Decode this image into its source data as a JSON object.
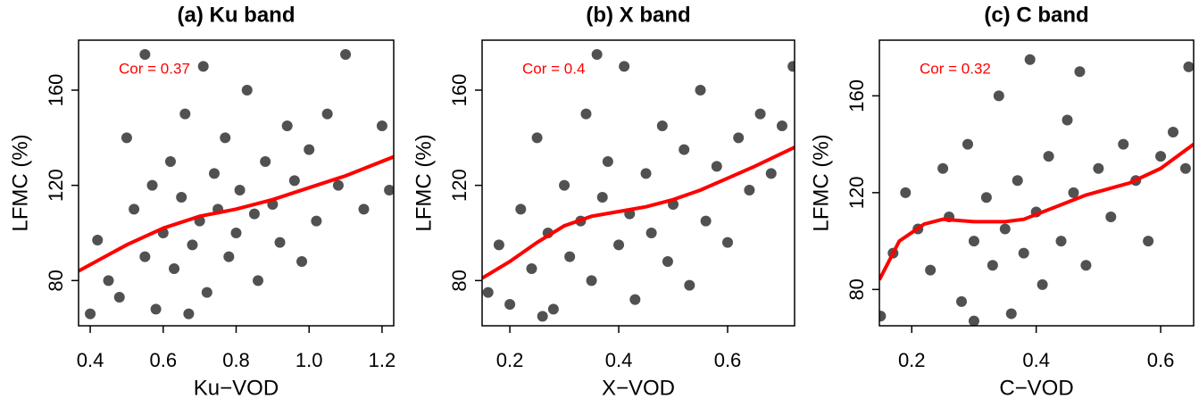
{
  "chart_data": [
    {
      "type": "scatter",
      "title": "(a) Ku band",
      "annotation": "Cor = 0.37",
      "x_label": "Ku−VOD",
      "y_label": "LFMC (%)",
      "xlim": [
        0.368,
        1.232
      ],
      "ylim": [
        61,
        181
      ],
      "xticks": [
        0.4,
        0.6,
        0.8,
        {
          "value": 1.0,
          "label": "1.0"
        },
        1.2
      ],
      "yticks": [
        80,
        120,
        160
      ],
      "color": "#333333",
      "x": [
        0.4,
        0.42,
        0.45,
        0.48,
        0.5,
        0.52,
        0.55,
        0.57,
        0.58,
        0.6,
        0.62,
        0.63,
        0.65,
        0.66,
        0.68,
        0.7,
        0.71,
        0.72,
        0.74,
        0.75,
        0.77,
        0.78,
        0.8,
        0.81,
        0.83,
        0.85,
        0.86,
        0.88,
        0.9,
        0.92,
        0.94,
        0.96,
        0.98,
        1.0,
        1.02,
        1.05,
        1.08,
        1.1,
        1.15,
        1.2,
        1.22,
        0.55,
        0.67
      ],
      "y": [
        66,
        97,
        80,
        73,
        140,
        110,
        90,
        120,
        68,
        100,
        130,
        85,
        115,
        150,
        95,
        105,
        170,
        75,
        125,
        110,
        140,
        90,
        100,
        118,
        160,
        108,
        80,
        130,
        112,
        96,
        145,
        122,
        88,
        135,
        105,
        150,
        120,
        175,
        110,
        145,
        118,
        175,
        66
      ],
      "smooth": {
        "color": "#ff0000",
        "x": [
          0.368,
          0.5,
          0.6,
          0.7,
          0.8,
          0.9,
          1.0,
          1.1,
          1.232
        ],
        "y": [
          84,
          95,
          102,
          107,
          110,
          114,
          119,
          124,
          132
        ]
      }
    },
    {
      "type": "scatter",
      "title": "(b) X band",
      "annotation": "Cor = 0.4",
      "x_label": "X−VOD",
      "y_label": "LFMC (%)",
      "xlim": [
        0.149,
        0.723
      ],
      "ylim": [
        61,
        181
      ],
      "xticks": [
        0.2,
        0.4,
        0.6
      ],
      "yticks": [
        80,
        120,
        160
      ],
      "color": "#333333",
      "x": [
        0.16,
        0.18,
        0.2,
        0.22,
        0.24,
        0.25,
        0.27,
        0.28,
        0.3,
        0.31,
        0.33,
        0.34,
        0.35,
        0.37,
        0.38,
        0.4,
        0.41,
        0.42,
        0.43,
        0.45,
        0.46,
        0.48,
        0.49,
        0.5,
        0.52,
        0.53,
        0.55,
        0.56,
        0.58,
        0.6,
        0.62,
        0.64,
        0.66,
        0.68,
        0.7,
        0.72,
        0.36,
        0.26
      ],
      "y": [
        75,
        95,
        70,
        110,
        85,
        140,
        100,
        68,
        120,
        90,
        105,
        150,
        80,
        115,
        130,
        95,
        170,
        108,
        72,
        125,
        100,
        145,
        88,
        112,
        135,
        78,
        160,
        105,
        128,
        96,
        140,
        118,
        150,
        125,
        145,
        170,
        175,
        65
      ],
      "smooth": {
        "color": "#ff0000",
        "x": [
          0.149,
          0.2,
          0.25,
          0.3,
          0.35,
          0.4,
          0.45,
          0.5,
          0.55,
          0.6,
          0.65,
          0.723
        ],
        "y": [
          81,
          88,
          96,
          103,
          107,
          109,
          111,
          114,
          118,
          123,
          128,
          136
        ]
      }
    },
    {
      "type": "scatter",
      "title": "(c) C band",
      "annotation": "Cor = 0.32",
      "x_label": "C−VOD",
      "y_label": "LFMC (%)",
      "xlim": [
        0.148,
        0.653
      ],
      "ylim": [
        65,
        183
      ],
      "xticks": [
        0.2,
        0.4,
        0.6
      ],
      "yticks": [
        80,
        120,
        160
      ],
      "color": "#333333",
      "x": [
        0.15,
        0.17,
        0.19,
        0.21,
        0.23,
        0.25,
        0.26,
        0.28,
        0.29,
        0.3,
        0.32,
        0.33,
        0.34,
        0.35,
        0.36,
        0.37,
        0.38,
        0.39,
        0.4,
        0.41,
        0.42,
        0.44,
        0.45,
        0.46,
        0.48,
        0.5,
        0.52,
        0.54,
        0.56,
        0.58,
        0.6,
        0.62,
        0.64,
        0.645,
        0.3,
        0.47
      ],
      "y": [
        69,
        95,
        120,
        105,
        88,
        130,
        110,
        75,
        140,
        100,
        118,
        90,
        160,
        105,
        70,
        125,
        95,
        175,
        112,
        82,
        135,
        100,
        150,
        120,
        90,
        130,
        110,
        140,
        125,
        100,
        135,
        145,
        130,
        172,
        67,
        170
      ],
      "smooth": {
        "color": "#ff0000",
        "x": [
          0.148,
          0.18,
          0.22,
          0.25,
          0.3,
          0.35,
          0.38,
          0.42,
          0.48,
          0.55,
          0.6,
          0.653
        ],
        "y": [
          84,
          100,
          107,
          109,
          108,
          108,
          109,
          113,
          119,
          124,
          130,
          140
        ]
      }
    }
  ]
}
